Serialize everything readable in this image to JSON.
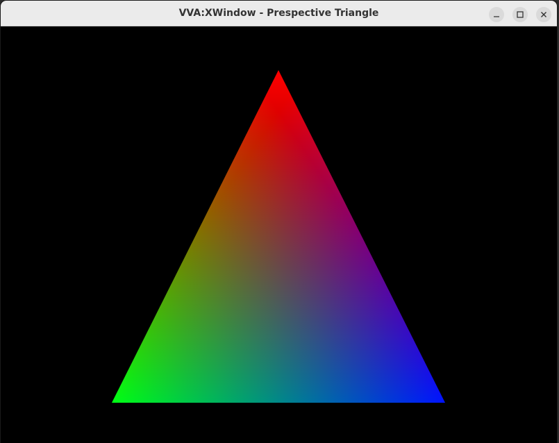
{
  "window": {
    "title": "VVA:XWindow - Prespective Triangle",
    "controls": {
      "minimize_icon": "minimize-icon",
      "maximize_icon": "maximize-icon",
      "close_icon": "close-icon"
    }
  },
  "scene": {
    "background_color": "#000000",
    "vertex_colors": {
      "top": "#ff0000",
      "bottom_left": "#00ff00",
      "bottom_right": "#0000ff"
    }
  }
}
